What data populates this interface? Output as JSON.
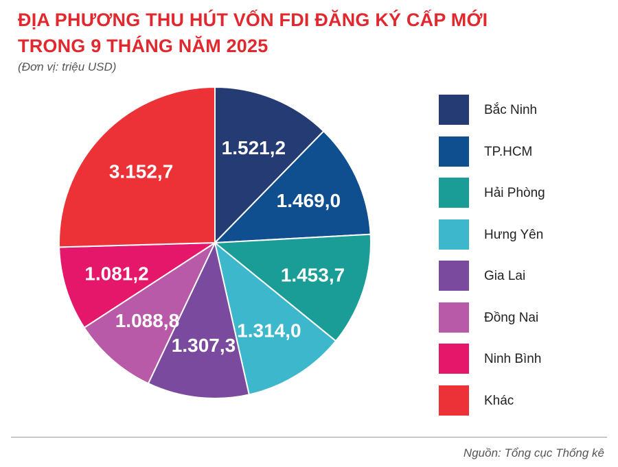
{
  "title_lines": [
    "ĐỊA PHƯƠNG THU HÚT VỐN FDI ĐĂNG KÝ CẤP MỚI",
    "TRONG 9 THÁNG NĂM 2025"
  ],
  "unit": "(Đơn vị: triệu USD)",
  "source": "Nguồn: Tổng cục Thống kê",
  "chart_data": {
    "type": "pie",
    "categories": [
      "Bắc Ninh",
      "TP.HCM",
      "Hải Phòng",
      "Hưng Yên",
      "Gia Lai",
      "Đồng Nai",
      "Ninh Bình",
      "Khác"
    ],
    "values": [
      1521.2,
      1469.0,
      1453.7,
      1314.0,
      1307.3,
      1088.8,
      1081.2,
      3152.7
    ],
    "data_labels": [
      "1.521,2",
      "1.469,0",
      "1.453,7",
      "1.314,0",
      "1.307,3",
      "1.088,8",
      "1.081,2",
      "3.152,7"
    ],
    "colors": [
      "#253b73",
      "#0f4f8f",
      "#1a9d96",
      "#3db7cc",
      "#7a4a9e",
      "#b85aa8",
      "#e5176b",
      "#ed3237"
    ],
    "legend_position": "right"
  }
}
